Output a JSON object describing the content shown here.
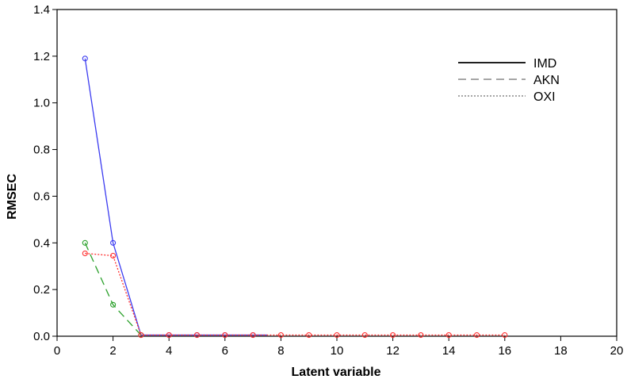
{
  "chart_data": {
    "type": "line",
    "xlabel": "Latent variable",
    "ylabel": "RMSEC",
    "xlim": [
      0,
      20
    ],
    "ylim": [
      0.0,
      1.4
    ],
    "xticks": [
      0,
      2,
      4,
      6,
      8,
      10,
      12,
      14,
      16,
      18,
      20
    ],
    "xtick_labels": [
      "0",
      "2",
      "4",
      "6",
      "8",
      "10",
      "12",
      "14",
      "16",
      "18",
      "20"
    ],
    "yticks": [
      0.0,
      0.2,
      0.4,
      0.6,
      0.8,
      1.0,
      1.2,
      1.4
    ],
    "ytick_labels": [
      "0.0",
      "0.2",
      "0.4",
      "0.6",
      "0.8",
      "1.0",
      "1.2",
      "1.4"
    ],
    "grid": false,
    "legend_position": "top-right",
    "series": [
      {
        "name": "IMD",
        "color": "#3b3bf0",
        "line_style": "solid",
        "legend_line_color": "#000000",
        "marker": "open-circle",
        "x": [
          1,
          2,
          3,
          4,
          5,
          6,
          7
        ],
        "y": [
          1.19,
          0.4,
          0.005,
          0.005,
          0.005,
          0.005,
          0.005
        ],
        "line_x_end": 7.5
      },
      {
        "name": "AKN",
        "color": "#2aa02a",
        "line_style": "dashed",
        "legend_line_color": "#707070",
        "marker": "open-circle",
        "x": [
          1,
          2,
          3
        ],
        "y": [
          0.4,
          0.135,
          0.005
        ]
      },
      {
        "name": "OXI",
        "color": "#ff3030",
        "line_style": "dotted",
        "legend_line_color": "#707070",
        "marker": "open-circle",
        "x": [
          1,
          2,
          3,
          4,
          5,
          6,
          7,
          8,
          9,
          10,
          11,
          12,
          13,
          14,
          15,
          16
        ],
        "y": [
          0.355,
          0.345,
          0.005,
          0.005,
          0.005,
          0.005,
          0.005,
          0.005,
          0.005,
          0.005,
          0.005,
          0.005,
          0.005,
          0.005,
          0.005,
          0.005
        ]
      }
    ]
  }
}
